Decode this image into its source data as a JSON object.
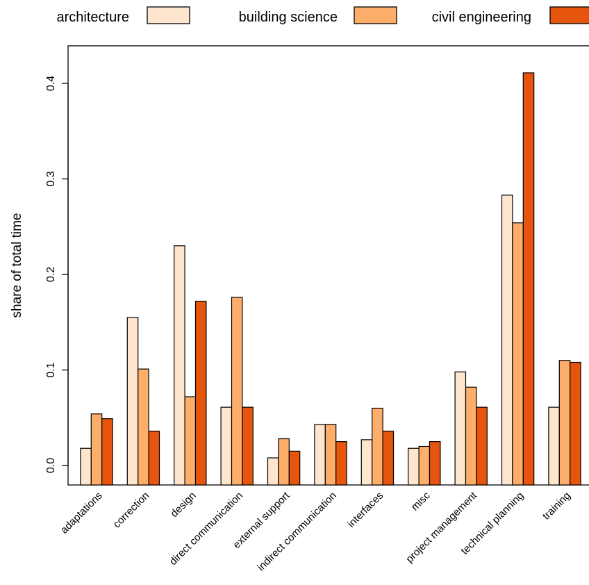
{
  "chart_data": {
    "type": "bar",
    "ylabel": "share of total time",
    "xlabel": "",
    "title": "",
    "ylim": [
      -0.02,
      0.44
    ],
    "yticks": [
      0.0,
      0.1,
      0.2,
      0.3,
      0.4
    ],
    "ytick_labels": [
      "0.0",
      "0.1",
      "0.2",
      "0.3",
      "0.4"
    ],
    "legend_position": "top",
    "grid": false,
    "categories": [
      "adaptations",
      "correction",
      "design",
      "direct communication",
      "external support",
      "indirect communication",
      "interfaces",
      "misc",
      "project management",
      "technical planning",
      "training"
    ],
    "series": [
      {
        "name": "architecture",
        "color": "#FEE6CE",
        "values": [
          0.018,
          0.155,
          0.23,
          0.061,
          0.008,
          0.043,
          0.027,
          0.018,
          0.098,
          0.283,
          0.061
        ]
      },
      {
        "name": "building science",
        "color": "#FDAE6B",
        "values": [
          0.054,
          0.101,
          0.072,
          0.176,
          0.028,
          0.043,
          0.06,
          0.02,
          0.082,
          0.254,
          0.11
        ]
      },
      {
        "name": "civil engineering",
        "color": "#E6550D",
        "values": [
          0.049,
          0.036,
          0.172,
          0.061,
          0.015,
          0.025,
          0.036,
          0.025,
          0.061,
          0.411,
          0.108
        ]
      }
    ]
  }
}
